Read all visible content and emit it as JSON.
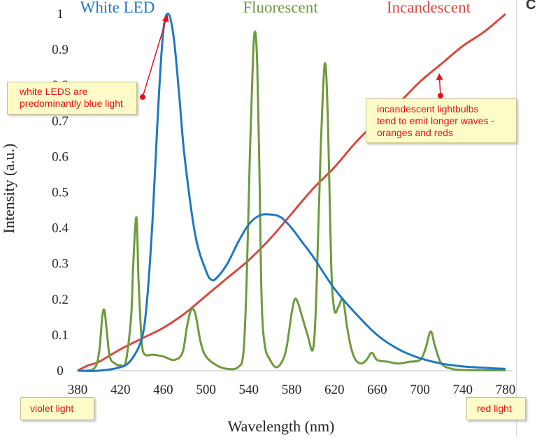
{
  "chart_data": {
    "type": "line",
    "xlabel": "Wavelength (nm)",
    "ylabel": "Intensity (a.u.)",
    "xlim": [
      380,
      780
    ],
    "ylim": [
      0,
      1
    ],
    "x_ticks": [
      "380",
      "420",
      "460",
      "500",
      "540",
      "580",
      "620",
      "660",
      "700",
      "740",
      "780"
    ],
    "y_ticks": [
      "0",
      "0.1",
      "0.2",
      "0.3",
      "0.4",
      "0.5",
      "0.6",
      "0.7",
      "0.8",
      "0.9",
      "1"
    ],
    "series": [
      {
        "name": "White LED",
        "color": "#1f77c4",
        "x": [
          380,
          400,
          420,
          430,
          440,
          445,
          450,
          455,
          460,
          465,
          470,
          475,
          480,
          490,
          500,
          505,
          510,
          520,
          530,
          540,
          550,
          560,
          570,
          580,
          590,
          600,
          620,
          640,
          660,
          680,
          700,
          720,
          740,
          760,
          780
        ],
        "y": [
          0,
          0,
          0.01,
          0.03,
          0.09,
          0.2,
          0.42,
          0.72,
          0.95,
          1.0,
          0.93,
          0.77,
          0.6,
          0.38,
          0.28,
          0.255,
          0.26,
          0.3,
          0.36,
          0.41,
          0.435,
          0.438,
          0.43,
          0.4,
          0.36,
          0.32,
          0.23,
          0.16,
          0.1,
          0.06,
          0.035,
          0.02,
          0.012,
          0.008,
          0.005
        ]
      },
      {
        "name": "Fluorescent",
        "color": "#6e9a3c",
        "x": [
          380,
          395,
          400,
          403,
          405,
          407,
          410,
          415,
          420,
          425,
          430,
          432,
          435,
          437,
          440,
          443,
          450,
          460,
          470,
          478,
          482,
          486,
          490,
          495,
          500,
          510,
          520,
          530,
          535,
          538,
          541,
          544,
          546,
          548,
          550,
          552,
          555,
          560,
          565,
          570,
          575,
          580,
          583,
          586,
          590,
          595,
          600,
          603,
          607,
          611,
          614,
          617,
          620,
          624,
          628,
          632,
          636,
          640,
          645,
          650,
          655,
          660,
          670,
          680,
          690,
          700,
          705,
          710,
          714,
          720,
          730,
          740,
          760,
          780
        ],
        "y": [
          0,
          0.005,
          0.05,
          0.15,
          0.17,
          0.12,
          0.04,
          0.02,
          0.015,
          0.025,
          0.15,
          0.3,
          0.43,
          0.25,
          0.08,
          0.045,
          0.045,
          0.04,
          0.03,
          0.05,
          0.12,
          0.17,
          0.16,
          0.08,
          0.04,
          0.015,
          0.005,
          0.01,
          0.05,
          0.25,
          0.6,
          0.88,
          0.95,
          0.85,
          0.55,
          0.2,
          0.07,
          0.03,
          0.01,
          0.02,
          0.06,
          0.16,
          0.2,
          0.19,
          0.15,
          0.1,
          0.06,
          0.2,
          0.6,
          0.86,
          0.7,
          0.3,
          0.17,
          0.18,
          0.2,
          0.12,
          0.06,
          0.03,
          0.02,
          0.03,
          0.05,
          0.03,
          0.025,
          0.02,
          0.025,
          0.03,
          0.06,
          0.11,
          0.07,
          0.02,
          0.005,
          0.002,
          0.001,
          0.001
        ]
      },
      {
        "name": "Incandescent",
        "color": "#d84a3f",
        "x": [
          380,
          390,
          400,
          420,
          440,
          460,
          480,
          500,
          520,
          540,
          560,
          580,
          600,
          620,
          640,
          660,
          680,
          700,
          720,
          740,
          760,
          780
        ],
        "y": [
          0,
          0.015,
          0.025,
          0.06,
          0.09,
          0.12,
          0.16,
          0.21,
          0.26,
          0.31,
          0.37,
          0.44,
          0.51,
          0.57,
          0.64,
          0.7,
          0.75,
          0.81,
          0.86,
          0.91,
          0.95,
          1.0
        ]
      }
    ],
    "annotations": [
      {
        "text": "white LEDS are predominantly blue light",
        "points_to": [
          465,
          1.0
        ]
      },
      {
        "text": "incandescent lightbulbs tend to emit longer waves - oranges and reds",
        "points_to": [
          720,
          0.84
        ]
      },
      {
        "text": "violet light"
      },
      {
        "text": "red light"
      }
    ]
  },
  "notes": {
    "led_line1": "white LEDS are",
    "led_line2": "predominantly blue light",
    "inc_line1": "incandescent lightbulbs",
    "inc_line2": "tend to emit longer waves -",
    "inc_line3": "oranges and reds",
    "violet": "violet light",
    "red": "red light"
  },
  "colors": {
    "arrow": "#e8101a",
    "note_bg": "#fdfbc8"
  }
}
